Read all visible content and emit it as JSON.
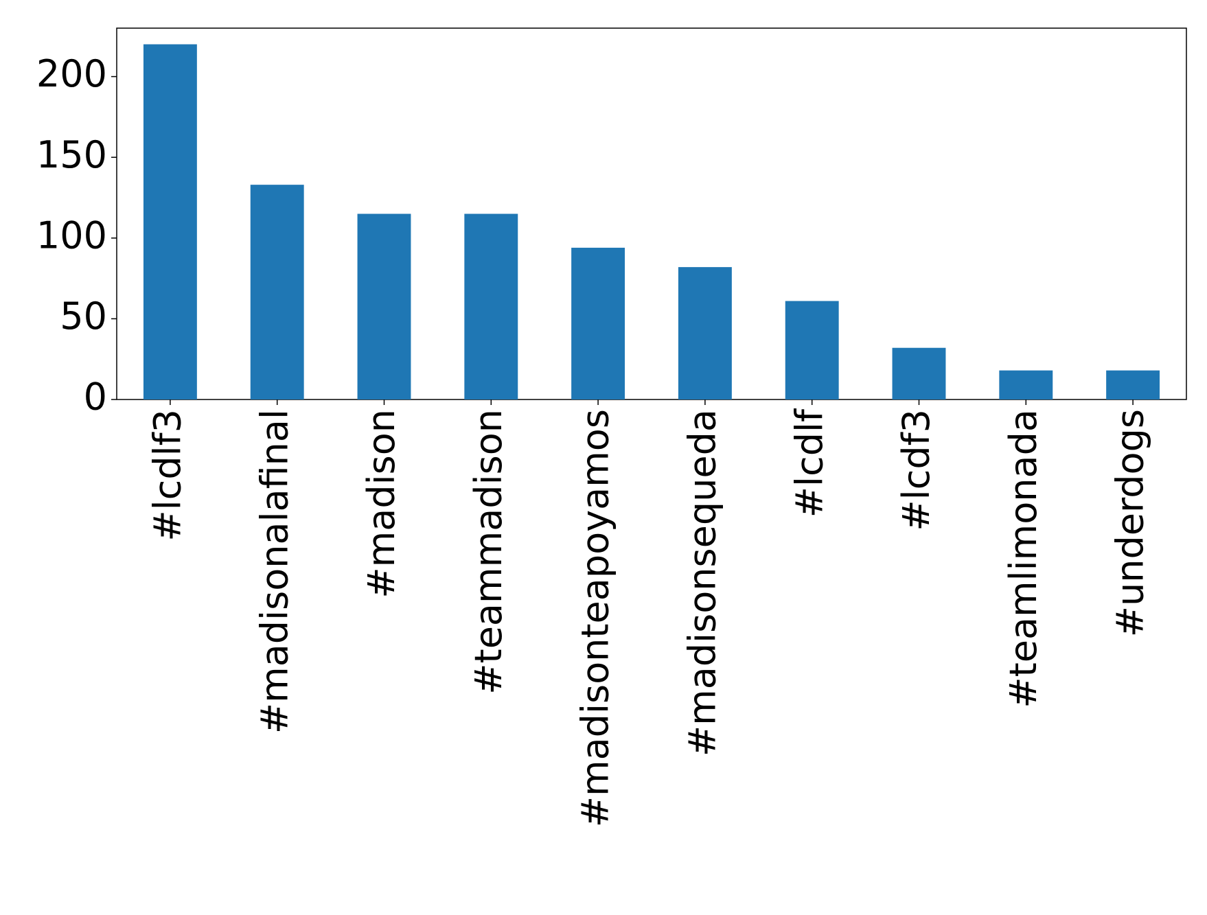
{
  "chart_data": {
    "type": "bar",
    "categories": [
      "#lcdlf3",
      "#madisonalafinal",
      "#madison",
      "#teammadison",
      "#madisonteapoyamos",
      "#madisonsequeda",
      "#lcdlf",
      "#lcdf3",
      "#teamlimonada",
      "#underdogs"
    ],
    "values": [
      220,
      133,
      115,
      115,
      94,
      82,
      61,
      32,
      18,
      18
    ],
    "color": "#1f77b4",
    "ylim": [
      0,
      230
    ],
    "yticks": [
      0,
      50,
      100,
      150,
      200
    ],
    "grid": false
  }
}
